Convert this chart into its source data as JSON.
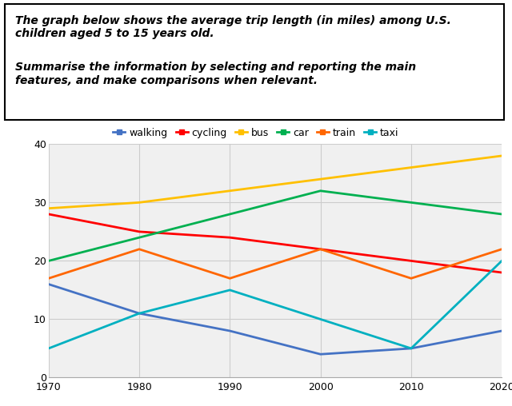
{
  "years": [
    1970,
    1980,
    1990,
    2000,
    2010,
    2020
  ],
  "series": {
    "walking": {
      "values": [
        16,
        11,
        8,
        4,
        5,
        8
      ],
      "color": "#4472C4"
    },
    "cycling": {
      "values": [
        28,
        25,
        24,
        22,
        20,
        18
      ],
      "color": "#FF0000"
    },
    "bus": {
      "values": [
        29,
        30,
        32,
        34,
        36,
        38
      ],
      "color": "#FFC000"
    },
    "car": {
      "values": [
        20,
        24,
        28,
        32,
        30,
        28
      ],
      "color": "#00B050"
    },
    "train": {
      "values": [
        17,
        22,
        17,
        22,
        17,
        22
      ],
      "color": "#FF6600"
    },
    "taxi": {
      "values": [
        5,
        11,
        15,
        10,
        5,
        20
      ],
      "color": "#00B0C0"
    }
  },
  "ylim": [
    0,
    40
  ],
  "yticks": [
    0,
    10,
    20,
    30,
    40
  ],
  "text_line1": "The graph below shows the average trip length (in miles) among U.S.",
  "text_line2": "children aged 5 to 15 years old.",
  "text_line3": "Summarise the information by selecting and reporting the main",
  "text_line4": "features, and make comparisons when relevant.",
  "grid_color": "#cccccc",
  "chart_bg": "#f0f0f0"
}
